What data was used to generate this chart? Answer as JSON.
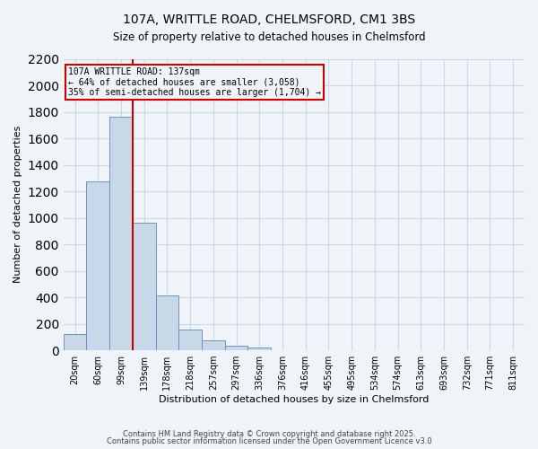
{
  "title_line1": "107A, WRITTLE ROAD, CHELMSFORD, CM1 3BS",
  "title_line2": "Size of property relative to detached houses in Chelmsford",
  "xlabel": "Distribution of detached houses by size in Chelmsford",
  "ylabel": "Number of detached properties",
  "bar_color": "#c8d8e8",
  "bar_edge_color": "#5a8ab0",
  "bar_values": [
    120,
    1275,
    1760,
    960,
    415,
    155,
    75,
    35,
    20,
    0,
    0,
    0,
    0,
    0,
    0,
    0,
    0,
    0,
    0,
    0
  ],
  "categories": [
    "20sqm",
    "60sqm",
    "99sqm",
    "139sqm",
    "178sqm",
    "218sqm",
    "257sqm",
    "297sqm",
    "336sqm",
    "376sqm",
    "416sqm",
    "455sqm",
    "495sqm",
    "534sqm",
    "574sqm",
    "613sqm",
    "693sqm",
    "732sqm",
    "771sqm",
    "811sqm"
  ],
  "ylim": [
    0,
    2200
  ],
  "yticks": [
    0,
    200,
    400,
    600,
    800,
    1000,
    1200,
    1400,
    1600,
    1800,
    2000,
    2200
  ],
  "property_line_x": 2.5,
  "annotation_line1": "107A WRITTLE ROAD: 137sqm",
  "annotation_line2": "← 64% of detached houses are smaller (3,058)",
  "annotation_line3": "35% of semi-detached houses are larger (1,704) →",
  "vline_color": "#cc0000",
  "annotation_box_edge": "#cc0000",
  "grid_color": "#c8d8e8",
  "background_color": "#f0f4f8",
  "footer_line1": "Contains HM Land Registry data © Crown copyright and database right 2025.",
  "footer_line2": "Contains public sector information licensed under the Open Government Licence v3.0"
}
